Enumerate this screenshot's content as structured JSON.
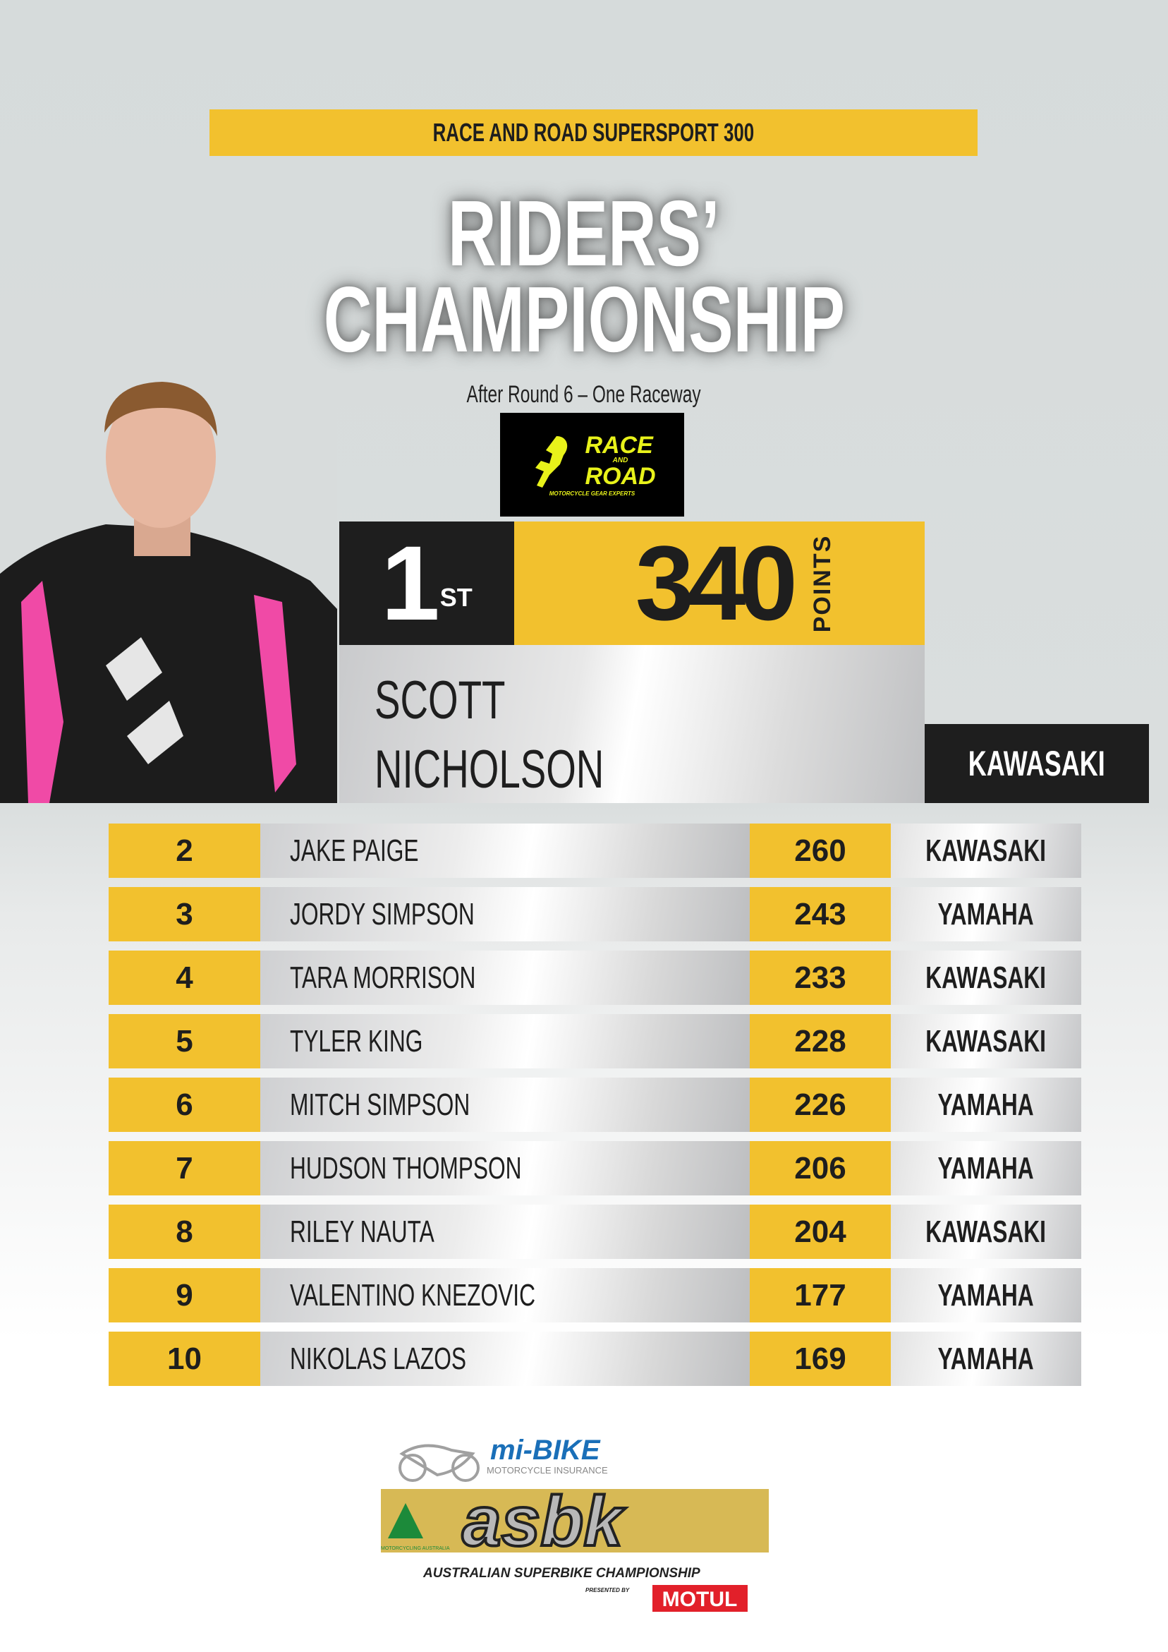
{
  "header": {
    "series": "RACE AND ROAD SUPERSPORT 300",
    "title_line1": "RIDERS’",
    "title_line2": "CHAMPIONSHIP",
    "subtitle": "After Round 6 – One Raceway",
    "sponsor_logo": {
      "line1": "RACE",
      "line2": "AND",
      "line3": "ROAD",
      "tagline": "MOTORCYCLE GEAR EXPERTS"
    }
  },
  "leader": {
    "position": "1",
    "position_suffix": "ST",
    "points": "340",
    "points_label": "POINTS",
    "first_name": "SCOTT",
    "last_name": "NICHOLSON",
    "team": "KAWASAKI"
  },
  "standings": [
    {
      "pos": "2",
      "name": "JAKE PAIGE",
      "points": "260",
      "team": "KAWASAKI"
    },
    {
      "pos": "3",
      "name": "JORDY SIMPSON",
      "points": "243",
      "team": "YAMAHA"
    },
    {
      "pos": "4",
      "name": "TARA MORRISON",
      "points": "233",
      "team": "KAWASAKI"
    },
    {
      "pos": "5",
      "name": "TYLER KING",
      "points": "228",
      "team": "KAWASAKI"
    },
    {
      "pos": "6",
      "name": "MITCH SIMPSON",
      "points": "226",
      "team": "YAMAHA"
    },
    {
      "pos": "7",
      "name": "HUDSON THOMPSON",
      "points": "206",
      "team": "YAMAHA"
    },
    {
      "pos": "8",
      "name": "RILEY NAUTA",
      "points": "204",
      "team": "KAWASAKI"
    },
    {
      "pos": "9",
      "name": "VALENTINO KNEZOVIC",
      "points": "177",
      "team": "YAMAHA"
    },
    {
      "pos": "10",
      "name": "NIKOLAS LAZOS",
      "points": "169",
      "team": "YAMAHA"
    }
  ],
  "footer_logo": {
    "brand": "mi-BIKE",
    "brand_sub": "MOTORCYCLE INSURANCE",
    "mark": "asbk",
    "name": "AUSTRALIAN SUPERBIKE CHAMPIONSHIP",
    "presented": "PRESENTED BY",
    "presenter": "MOTUL",
    "body": "MOTORCYCLING AUSTRALIA"
  },
  "colors": {
    "accent_yellow": "#f2c12e",
    "dark": "#1e1e1e",
    "motul_red": "#e2202a",
    "mibike_blue": "#1a6fb8"
  }
}
